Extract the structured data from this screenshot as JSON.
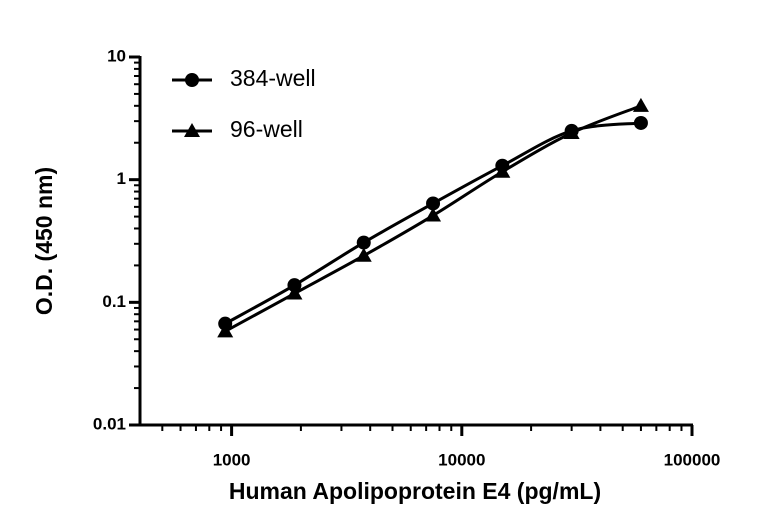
{
  "chart_data": {
    "type": "line",
    "x_label": "Human Apolipoprotein E4 (pg/mL)",
    "y_label": "O.D. (450 nm)",
    "x": [
      938,
      1875,
      3750,
      7500,
      15000,
      30000,
      60000
    ],
    "series": [
      {
        "name": "384-well",
        "color": "#000000",
        "marker": "circle",
        "values": [
          0.067,
          0.138,
          0.307,
          0.64,
          1.3,
          2.5,
          2.9
        ]
      },
      {
        "name": "96-well",
        "color": "#000000",
        "marker": "triangle",
        "values": [
          0.058,
          0.118,
          0.24,
          0.51,
          1.16,
          2.4,
          4.0
        ]
      }
    ],
    "xlim": [
      400,
      100000
    ],
    "xticks": [
      1000,
      10000,
      100000
    ],
    "ylim": [
      0.01,
      10
    ],
    "yticks": [
      0.01,
      0.1,
      1,
      10
    ],
    "xscale": "log",
    "yscale": "log",
    "legend": "upper left",
    "grid": false
  }
}
